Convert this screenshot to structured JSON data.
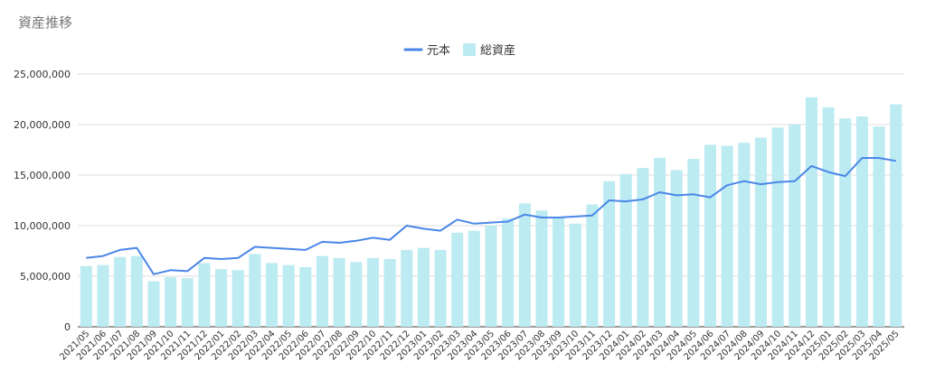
{
  "title": "資産推移",
  "colors": {
    "principal": "#4a86e8",
    "total": "#bcebf1",
    "grid": "#dddddd",
    "axis": "#333333"
  },
  "chart_data": {
    "type": "bar",
    "title": "資産推移",
    "legend_position": "top",
    "grid": true,
    "ylim": [
      0,
      25000000
    ],
    "yticks": [
      0,
      5000000,
      10000000,
      15000000,
      20000000,
      25000000
    ],
    "ytick_labels": [
      "0",
      "5,000,000",
      "10,000,000",
      "15,000,000",
      "20,000,000",
      "25,000,000"
    ],
    "categories": [
      "2021/05",
      "2021/06",
      "2021/07",
      "2021/08",
      "2021/09",
      "2021/10",
      "2021/11",
      "2021/12",
      "2022/01",
      "2022/02",
      "2022/03",
      "2022/04",
      "2022/05",
      "2022/06",
      "2022/07",
      "2022/08",
      "2022/09",
      "2022/10",
      "2022/11",
      "2022/12",
      "2023/01",
      "2023/02",
      "2023/03",
      "2023/04",
      "2023/05",
      "2023/06",
      "2023/07",
      "2023/08",
      "2023/09",
      "2023/10",
      "2023/11",
      "2023/12",
      "2024/01",
      "2024/02",
      "2024/03",
      "2024/04",
      "2024/05",
      "2024/06",
      "2024/07",
      "2024/08",
      "2024/09",
      "2024/10",
      "2024/11",
      "2024/12",
      "2025/01",
      "2025/02",
      "2025/03",
      "2025/04",
      "2025/05"
    ],
    "series": [
      {
        "name": "元本",
        "type": "line",
        "values": [
          6800000,
          7000000,
          7600000,
          7800000,
          5200000,
          5600000,
          5500000,
          6800000,
          6700000,
          6800000,
          7900000,
          7800000,
          7700000,
          7600000,
          8400000,
          8300000,
          8500000,
          8800000,
          8600000,
          10000000,
          9700000,
          9500000,
          10600000,
          10200000,
          10300000,
          10400000,
          11100000,
          10800000,
          10800000,
          10900000,
          11000000,
          12500000,
          12400000,
          12600000,
          13300000,
          13000000,
          13100000,
          12800000,
          14000000,
          14400000,
          14100000,
          14300000,
          14400000,
          15900000,
          15300000,
          14900000,
          16700000,
          16700000,
          16400000
        ]
      },
      {
        "name": "総資産",
        "type": "bar",
        "values": [
          6000000,
          6100000,
          6900000,
          7000000,
          4500000,
          4900000,
          4800000,
          6300000,
          5700000,
          5600000,
          7200000,
          6300000,
          6100000,
          5900000,
          7000000,
          6800000,
          6400000,
          6800000,
          6700000,
          7600000,
          7800000,
          7600000,
          9300000,
          9500000,
          10000000,
          10700000,
          12200000,
          11500000,
          10800000,
          10200000,
          12100000,
          14400000,
          15100000,
          15700000,
          16700000,
          15500000,
          16600000,
          18000000,
          17900000,
          18200000,
          18700000,
          19700000,
          20000000,
          22700000,
          21700000,
          20600000,
          20800000,
          19800000,
          22000000
        ]
      }
    ]
  }
}
